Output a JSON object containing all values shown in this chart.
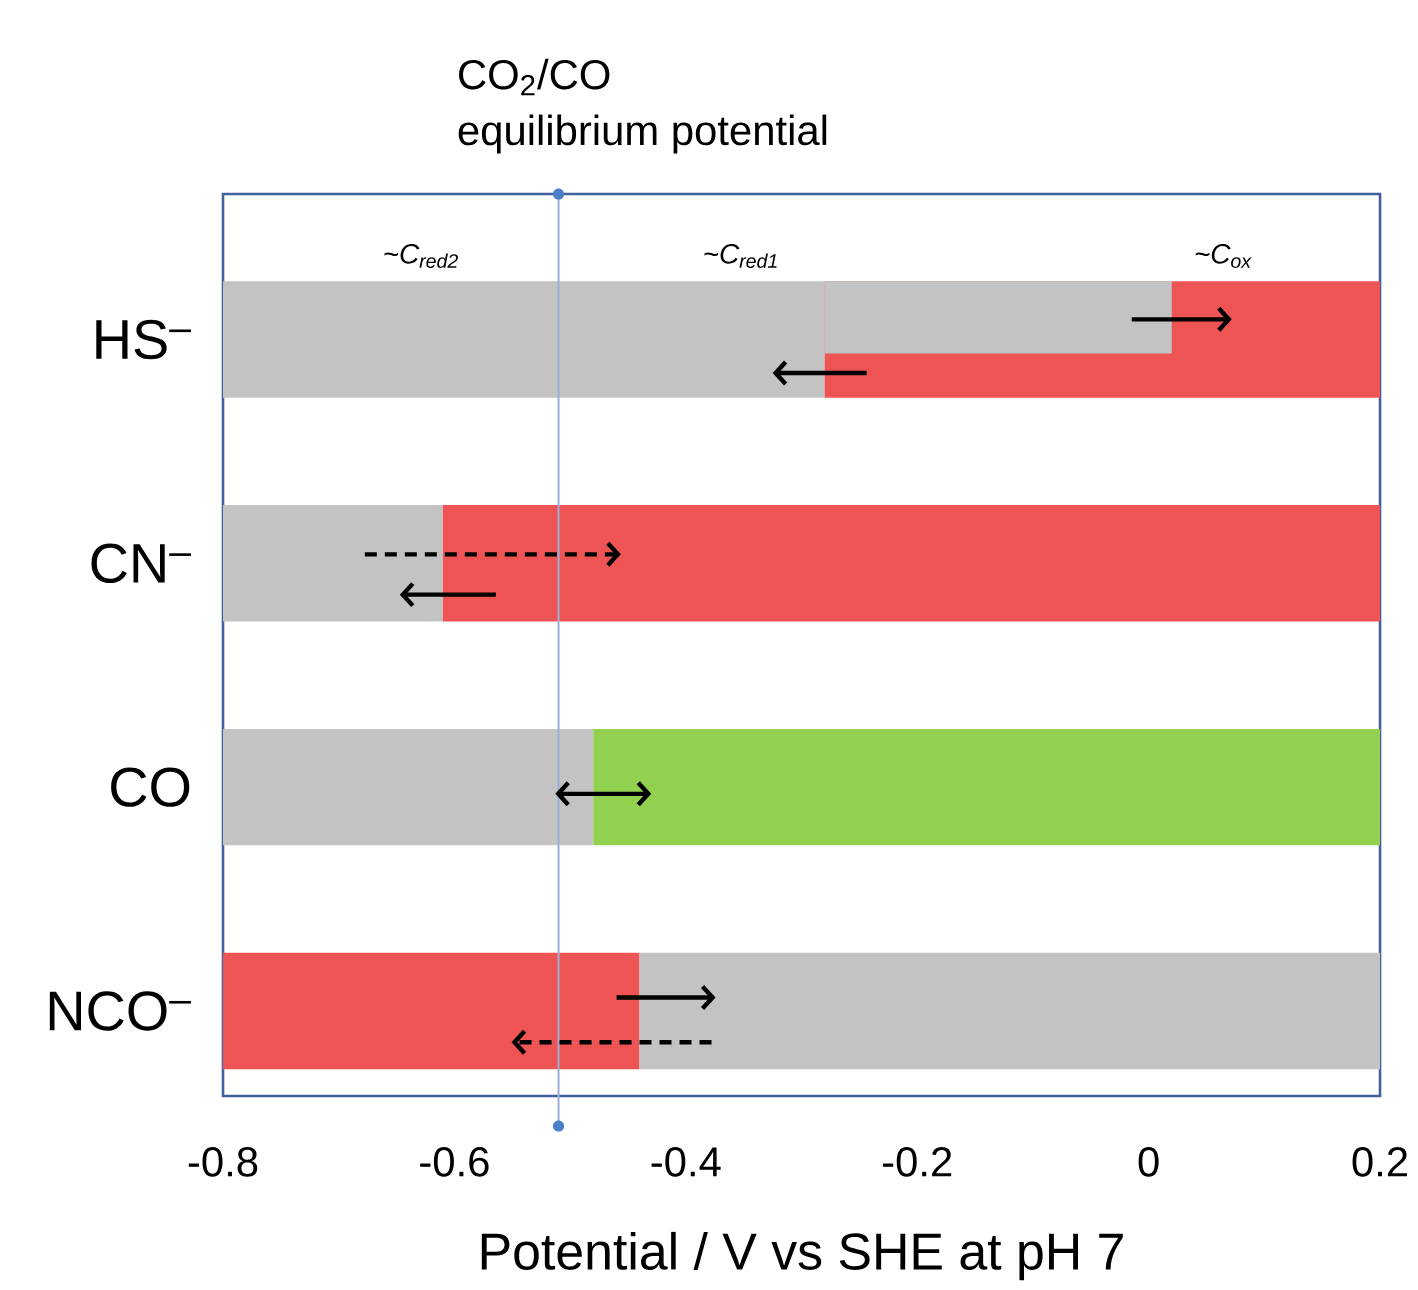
{
  "chart_data": {
    "type": "bar",
    "orientation": "horizontal",
    "xlabel": "Potential / V vs SHE at pH 7",
    "categories": [
      "HS$^{–}$",
      "CN$^{–}$",
      "CO",
      "NCO$^{–}$"
    ],
    "xlim": [
      -0.8,
      0.2
    ],
    "xticks": [
      -0.8,
      -0.6,
      -0.4,
      -0.2,
      0,
      0.2
    ],
    "series": [
      {
        "base": [
          -0.28,
          null,
          null,
          null
        ],
        "values": [
          0.3,
          null,
          null,
          null
        ],
        "colors": [
          "#c3c3c3",
          null,
          null,
          null
        ]
      },
      {
        "base": [
          -0.8,
          -0.8,
          -0.8,
          -0.8
        ],
        "values": [
          0.52,
          0.19,
          0.32,
          0.36
        ],
        "colors": [
          "#c3c3c3",
          "#c3c3c3",
          "#c3c3c3",
          "#ef5454"
        ]
      },
      {
        "base": [
          -0.28,
          -0.61,
          -0.48,
          -0.44
        ],
        "values": [
          0.48,
          0.81,
          0.68,
          0.64
        ],
        "colors": [
          "#ef5454",
          "#ef5454",
          "#92d050",
          "#c3c3c3"
        ]
      }
    ],
    "ref_lines": [
      {
        "axis": "x",
        "value": -0.51,
        "label": "CO$_{2}$/CO equilibrium potential",
        "color": "#9ab0d8"
      }
    ],
    "annotations": [
      "~C$_{red2}$",
      "~C$_{red1}$",
      "~C$_{ox}$"
    ]
  }
}
